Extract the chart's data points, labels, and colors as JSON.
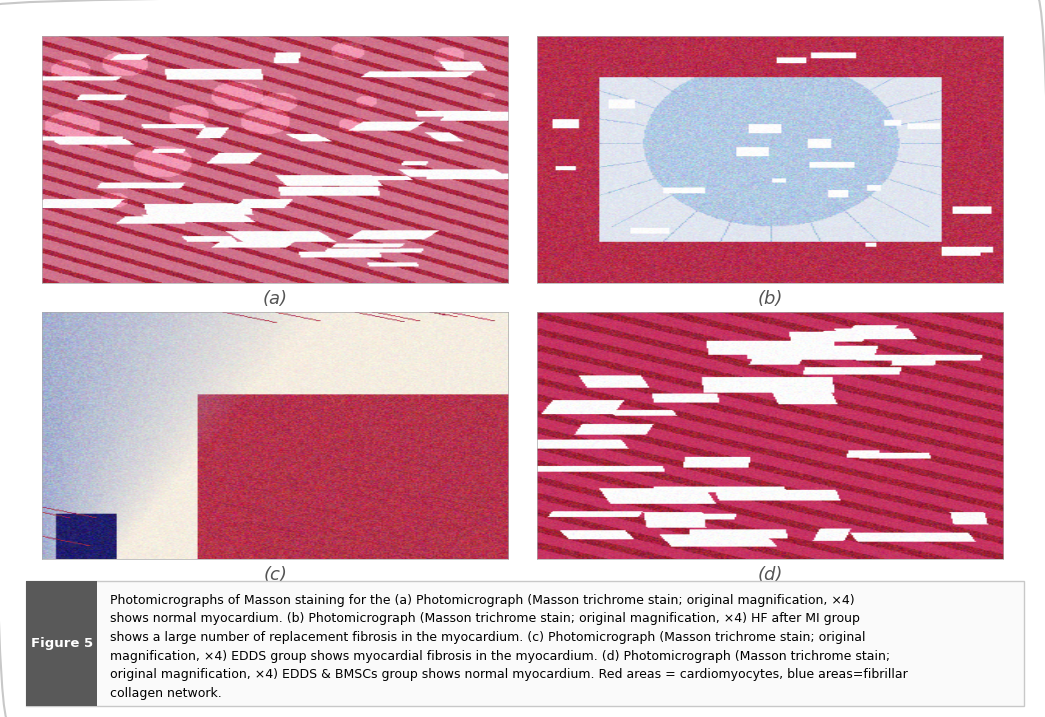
{
  "figure_label": "Figure 5",
  "caption_lines": [
    "Photomicrographs of Masson staining for the (a) Photomicrograph (Masson trichrome stain; original magnification, ×4)",
    "shows normal myocardium. (b) Photomicrograph (Masson trichrome stain; original magnification, ×4) HF after MI group",
    "shows a large number of replacement fibrosis in the myocardium. (c) Photomicrograph (Masson trichrome stain; original",
    "magnification, ×4) EDDS group shows myocardial fibrosis in the myocardium. (d) Photomicrograph (Masson trichrome stain;",
    "original magnification, ×4) EDDS & BMSCs group shows normal myocardium. Red areas = cardiomyocytes, blue areas=fibrillar",
    "collagen network."
  ],
  "panel_labels": [
    "(a)",
    "(b)",
    "(c)",
    "(d)"
  ],
  "background_color": "#ffffff",
  "border_color": "#c8c8c8",
  "figure_label_bg": "#595959",
  "figure_label_color": "#ffffff",
  "caption_color": "#000000",
  "panel_label_color": "#555555",
  "figsize": [
    10.45,
    7.17
  ],
  "dpi": 100
}
